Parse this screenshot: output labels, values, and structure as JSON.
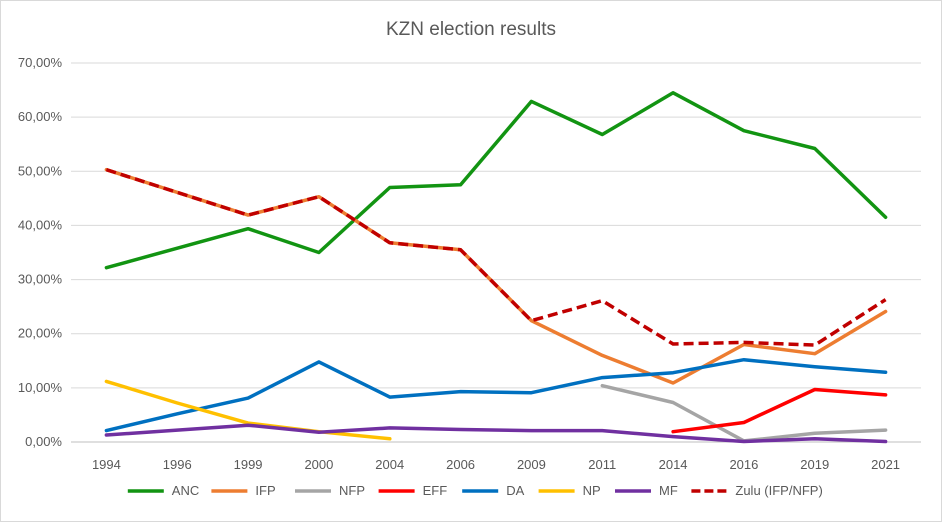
{
  "chart_data": {
    "type": "line",
    "title": "KZN election results",
    "xlabel": "",
    "ylabel": "",
    "x": [
      "1994",
      "1996",
      "1999",
      "2000",
      "2004",
      "2006",
      "2009",
      "2011",
      "2014",
      "2016",
      "2019",
      "2021"
    ],
    "ylim": [
      0,
      70
    ],
    "yticks": [
      "0,00%",
      "10,00%",
      "20,00%",
      "30,00%",
      "40,00%",
      "50,00%",
      "60,00%",
      "70,00%"
    ],
    "ytick_values": [
      0,
      10,
      20,
      30,
      40,
      50,
      60,
      70
    ],
    "grid": true,
    "legend_position": "bottom",
    "series": [
      {
        "name": "ANC",
        "color": "#129412",
        "dashed": false,
        "values": [
          32.2,
          35.8,
          39.4,
          35.0,
          47.0,
          47.5,
          62.9,
          56.8,
          64.5,
          57.5,
          54.2,
          41.5
        ]
      },
      {
        "name": "IFP",
        "color": "#ED7D31",
        "dashed": false,
        "values": [
          50.3,
          null,
          41.9,
          45.3,
          36.8,
          35.5,
          22.4,
          16.0,
          10.9,
          18.0,
          16.3,
          24.1
        ]
      },
      {
        "name": "NFP",
        "color": "#A5A5A5",
        "dashed": false,
        "values": [
          null,
          null,
          null,
          null,
          null,
          null,
          null,
          10.4,
          7.3,
          0.2,
          1.6,
          2.2
        ]
      },
      {
        "name": "EFF",
        "color": "#FF0000",
        "dashed": false,
        "values": [
          null,
          null,
          null,
          null,
          null,
          null,
          null,
          null,
          1.9,
          3.6,
          9.7,
          8.7
        ]
      },
      {
        "name": "DA",
        "color": "#0070C0",
        "dashed": false,
        "values": [
          2.1,
          5.2,
          8.1,
          14.8,
          8.3,
          9.3,
          9.1,
          11.9,
          12.8,
          15.2,
          13.9,
          12.9
        ]
      },
      {
        "name": "NP",
        "color": "#FFC000",
        "dashed": false,
        "values": [
          11.2,
          7.2,
          3.5,
          1.9,
          0.6,
          null,
          null,
          null,
          null,
          null,
          null,
          null
        ]
      },
      {
        "name": "MF",
        "color": "#7030A0",
        "dashed": false,
        "values": [
          1.3,
          2.2,
          3.1,
          1.8,
          2.6,
          2.3,
          2.1,
          2.1,
          1.0,
          0.1,
          0.6,
          0.1
        ]
      },
      {
        "name": "Zulu (IFP/NFP)",
        "color": "#C00000",
        "dashed": true,
        "values": [
          50.3,
          null,
          41.9,
          45.3,
          36.8,
          35.5,
          22.4,
          26.1,
          18.1,
          18.4,
          17.9,
          26.3
        ]
      }
    ]
  }
}
